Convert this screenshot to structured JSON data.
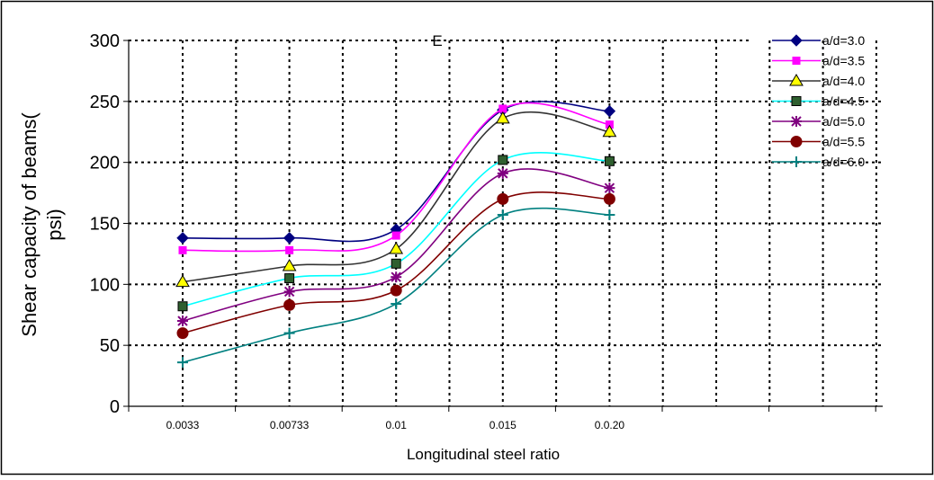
{
  "chart_data": {
    "type": "line",
    "title": "",
    "annotation": "E",
    "xlabel": "Longitudinal steel ratio",
    "ylabel_line1": "Shear capacity of beams(",
    "ylabel_line2": "psi)",
    "categories": [
      "0.0033",
      "0.00733",
      "0.01",
      "0.015",
      "0.0.20"
    ],
    "ylim": [
      0,
      300
    ],
    "yticks": [
      0,
      50,
      100,
      150,
      200,
      250,
      300
    ],
    "grid": true,
    "legend_position": "top-right",
    "series": [
      {
        "name": "a/d=3.0",
        "values": [
          138,
          138,
          145,
          243,
          242
        ],
        "color": "#000080",
        "marker": "diamond"
      },
      {
        "name": "a/d=3.5",
        "values": [
          128,
          128,
          140,
          244,
          231
        ],
        "color": "#ff00ff",
        "marker": "square"
      },
      {
        "name": "a/d=4.0",
        "values": [
          102,
          115,
          129,
          236,
          225
        ],
        "color": "#333333",
        "marker": "triangle"
      },
      {
        "name": "a/d=4.5",
        "values": [
          82,
          105,
          117,
          202,
          201
        ],
        "color": "#00ffff",
        "marker": "square-green"
      },
      {
        "name": "a/d=5.0",
        "values": [
          70,
          94,
          106,
          191,
          179
        ],
        "color": "#800080",
        "marker": "star"
      },
      {
        "name": "a/d=5.5",
        "values": [
          60,
          83,
          95,
          170,
          170
        ],
        "color": "#800000",
        "marker": "circle"
      },
      {
        "name": "a/d=6.0",
        "values": [
          36,
          60,
          84,
          157,
          157
        ],
        "color": "#008080",
        "marker": "plus"
      }
    ]
  }
}
